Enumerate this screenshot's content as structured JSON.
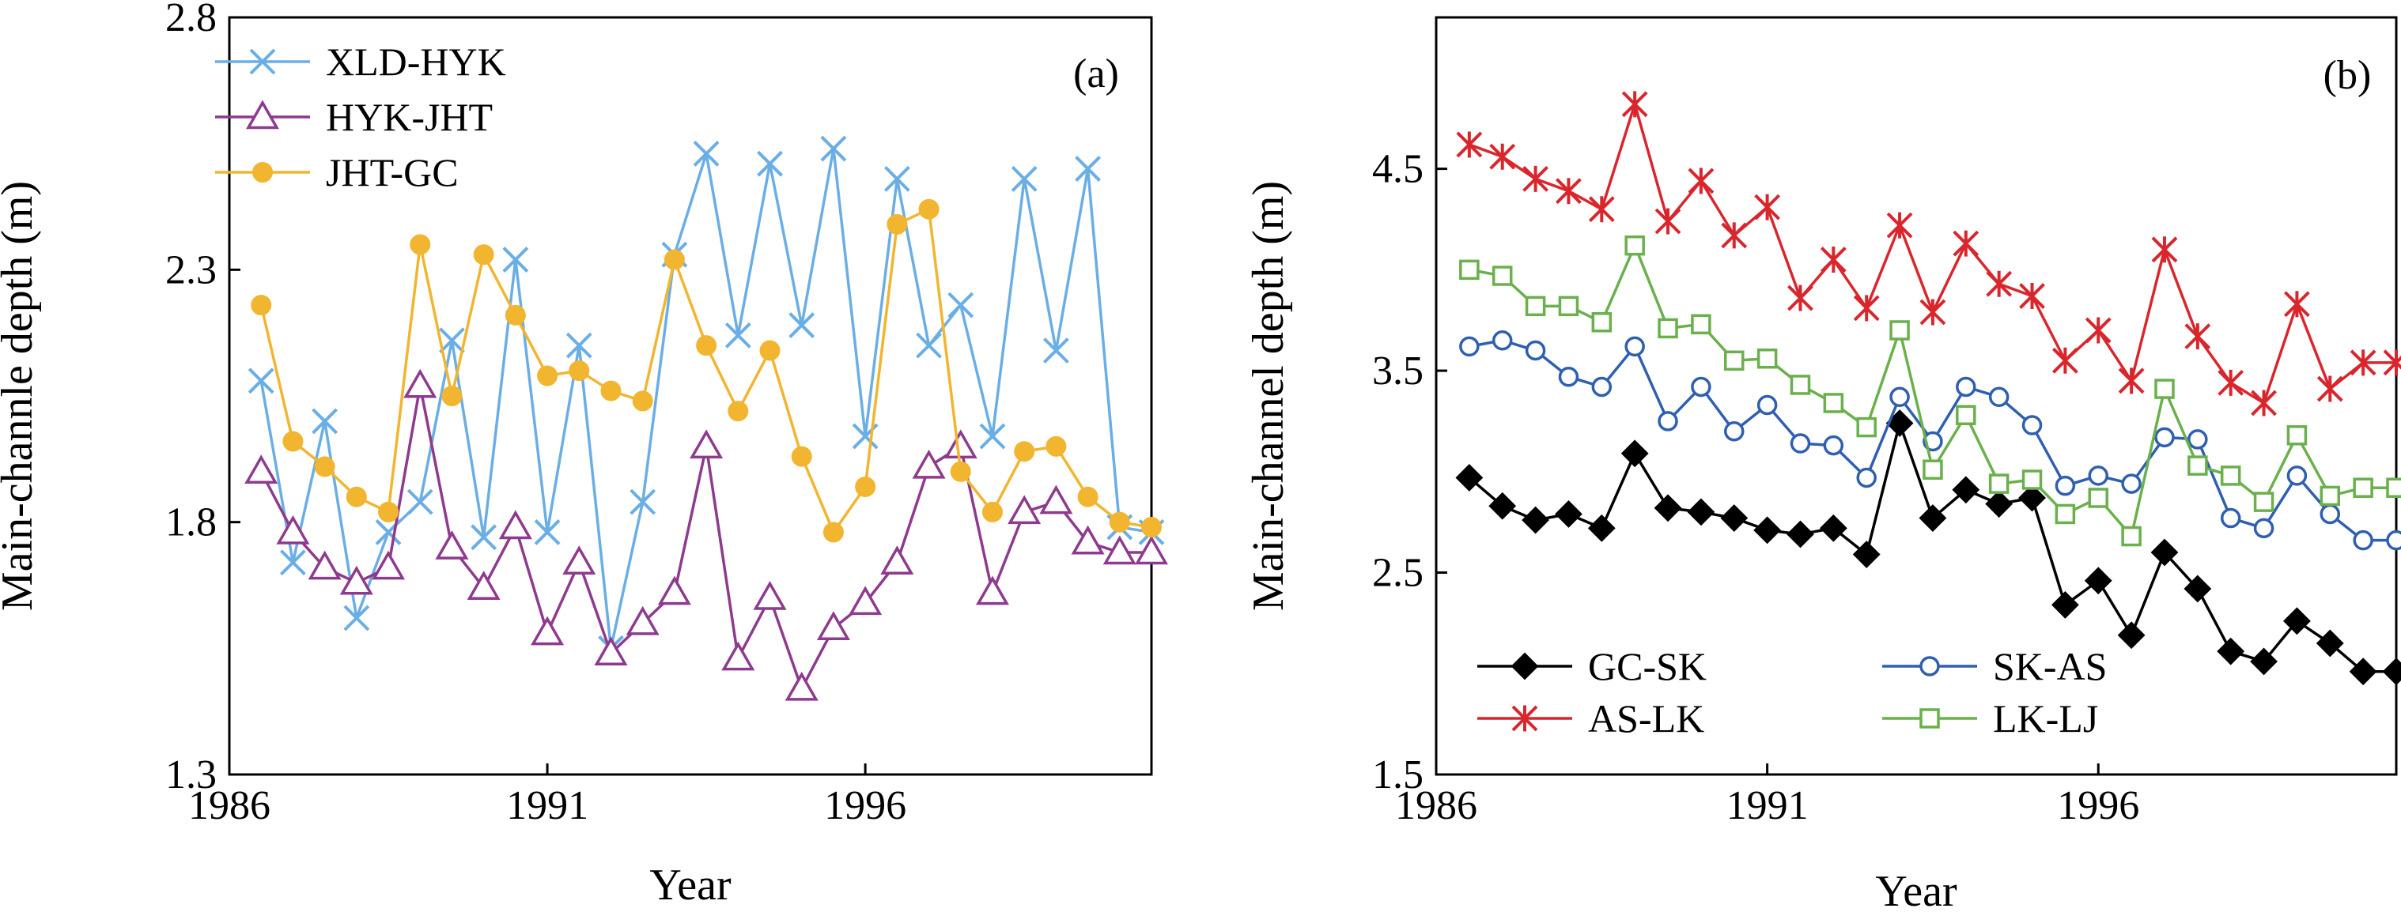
{
  "chart_data": [
    {
      "type": "line",
      "panel_label": "(a)",
      "xlabel": "Year",
      "ylabel": "Main-channle depth (m)",
      "xlim": [
        1986,
        2000.5
      ],
      "ylim": [
        1.3,
        2.8
      ],
      "x_ticks": [
        1986,
        1991,
        1996
      ],
      "y_ticks": [
        1.3,
        1.8,
        2.3,
        2.8
      ],
      "y_tick_labels": [
        "1.3",
        "1.8",
        "2.3",
        "2.8"
      ],
      "legend_position": "top-left",
      "grid": false,
      "series": [
        {
          "name": "XLD-HYK",
          "color": "#6aaee6",
          "marker": "x",
          "x": [
            1986.5,
            1987,
            1987.5,
            1988,
            1988.5,
            1989,
            1989.5,
            1990,
            1990.5,
            1991,
            1991.5,
            1992,
            1992.5,
            1993,
            1993.5,
            1994,
            1994.5,
            1995,
            1995.5,
            1996,
            1996.5,
            1997,
            1997.5,
            1998,
            1998.5,
            1999,
            1999.5,
            2000,
            2000.5
          ],
          "y": [
            2.08,
            1.72,
            2.0,
            1.61,
            1.78,
            1.84,
            2.16,
            1.77,
            2.32,
            1.78,
            2.15,
            1.55,
            1.84,
            2.33,
            2.53,
            2.17,
            2.51,
            2.19,
            2.54,
            1.97,
            2.48,
            2.15,
            2.23,
            1.97,
            2.48,
            2.14,
            2.5,
            1.79,
            1.78
          ]
        },
        {
          "name": "HYK-JHT",
          "color": "#8e3a8e",
          "marker": "triangle",
          "x": [
            1986.5,
            1987,
            1987.5,
            1988,
            1988.5,
            1989,
            1989.5,
            1990,
            1990.5,
            1991,
            1991.5,
            1992,
            1992.5,
            1993,
            1993.5,
            1994,
            1994.5,
            1995,
            1995.5,
            1996,
            1996.5,
            1997,
            1997.5,
            1998,
            1998.5,
            1999,
            1999.5,
            2000,
            2000.5
          ],
          "y": [
            1.9,
            1.78,
            1.71,
            1.68,
            1.71,
            2.07,
            1.75,
            1.67,
            1.79,
            1.58,
            1.72,
            1.54,
            1.6,
            1.66,
            1.95,
            1.53,
            1.65,
            1.47,
            1.59,
            1.64,
            1.72,
            1.91,
            1.95,
            1.66,
            1.82,
            1.84,
            1.76,
            1.74,
            1.74
          ]
        },
        {
          "name": "JHT-GC",
          "color": "#f2b530",
          "marker": "circle",
          "x": [
            1986.5,
            1987,
            1987.5,
            1988,
            1988.5,
            1989,
            1989.5,
            1990,
            1990.5,
            1991,
            1991.5,
            1992,
            1992.5,
            1993,
            1993.5,
            1994,
            1994.5,
            1995,
            1995.5,
            1996,
            1996.5,
            1997,
            1997.5,
            1998,
            1998.5,
            1999,
            1999.5,
            2000,
            2000.5
          ],
          "y": [
            2.23,
            1.96,
            1.91,
            1.85,
            1.82,
            2.35,
            2.05,
            2.33,
            2.21,
            2.09,
            2.1,
            2.06,
            2.04,
            2.32,
            2.15,
            2.02,
            2.14,
            1.93,
            1.78,
            1.87,
            2.39,
            2.42,
            1.9,
            1.82,
            1.94,
            1.95,
            1.85,
            1.8,
            1.79
          ]
        }
      ]
    },
    {
      "type": "line",
      "panel_label": "(b)",
      "xlabel": "Year",
      "ylabel": "Main-channel depth (m)",
      "xlim": [
        1986,
        2000.5
      ],
      "ylim": [
        1.5,
        5.25
      ],
      "x_ticks": [
        1986,
        1991,
        1996
      ],
      "y_ticks": [
        1.5,
        2.5,
        3.5,
        4.5
      ],
      "y_tick_labels": [
        "1.5",
        "2.5",
        "3.5",
        "4.5"
      ],
      "legend_position": "bottom-left",
      "grid": false,
      "series": [
        {
          "name": "GC-SK",
          "color": "#000000",
          "marker": "diamond",
          "x": [
            1986.5,
            1987,
            1987.5,
            1988,
            1988.5,
            1989,
            1989.5,
            1990,
            1990.5,
            1991,
            1991.5,
            1992,
            1992.5,
            1993,
            1993.5,
            1994,
            1994.5,
            1995,
            1995.5,
            1996,
            1996.5,
            1997,
            1997.5,
            1998,
            1998.5,
            1999,
            1999.5,
            2000,
            2000.5
          ],
          "y": [
            2.97,
            2.83,
            2.76,
            2.79,
            2.72,
            3.09,
            2.82,
            2.8,
            2.77,
            2.71,
            2.69,
            2.72,
            2.59,
            3.24,
            2.77,
            2.91,
            2.84,
            2.87,
            2.34,
            2.46,
            2.19,
            2.6,
            2.42,
            2.11,
            2.06,
            2.26,
            2.15,
            2.01,
            2.01
          ]
        },
        {
          "name": "SK-AS",
          "color": "#2f5fb0",
          "marker": "circle-open",
          "x": [
            1986.5,
            1987,
            1987.5,
            1988,
            1988.5,
            1989,
            1989.5,
            1990,
            1990.5,
            1991,
            1991.5,
            1992,
            1992.5,
            1993,
            1993.5,
            1994,
            1994.5,
            1995,
            1995.5,
            1996,
            1996.5,
            1997,
            1997.5,
            1998,
            1998.5,
            1999,
            1999.5,
            2000,
            2000.5
          ],
          "y": [
            3.62,
            3.65,
            3.6,
            3.47,
            3.42,
            3.62,
            3.25,
            3.42,
            3.2,
            3.33,
            3.14,
            3.13,
            2.97,
            3.37,
            3.15,
            3.42,
            3.37,
            3.23,
            2.93,
            2.98,
            2.94,
            3.17,
            3.16,
            2.77,
            2.72,
            2.98,
            2.79,
            2.66,
            2.66
          ]
        },
        {
          "name": "AS-LK",
          "color": "#d9262c",
          "marker": "star",
          "x": [
            1986.5,
            1987,
            1987.5,
            1988,
            1988.5,
            1989,
            1989.5,
            1990,
            1990.5,
            1991,
            1991.5,
            1992,
            1992.5,
            1993,
            1993.5,
            1994,
            1994.5,
            1995,
            1995.5,
            1996,
            1996.5,
            1997,
            1997.5,
            1998,
            1998.5,
            1999,
            1999.5,
            2000,
            2000.5
          ],
          "y": [
            4.62,
            4.56,
            4.45,
            4.39,
            4.3,
            4.82,
            4.24,
            4.44,
            4.17,
            4.31,
            3.86,
            4.05,
            3.81,
            4.22,
            3.79,
            4.13,
            3.93,
            3.87,
            3.55,
            3.7,
            3.45,
            4.1,
            3.67,
            3.44,
            3.34,
            3.83,
            3.41,
            3.54,
            3.54
          ]
        },
        {
          "name": "LK-LJ",
          "color": "#6ab04c",
          "marker": "square-open",
          "x": [
            1986.5,
            1987,
            1987.5,
            1988,
            1988.5,
            1989,
            1989.5,
            1990,
            1990.5,
            1991,
            1991.5,
            1992,
            1992.5,
            1993,
            1993.5,
            1994,
            1994.5,
            1995,
            1995.5,
            1996,
            1996.5,
            1997,
            1997.5,
            1998,
            1998.5,
            1999,
            1999.5,
            2000,
            2000.5
          ],
          "y": [
            4.0,
            3.97,
            3.82,
            3.82,
            3.74,
            4.12,
            3.71,
            3.73,
            3.55,
            3.56,
            3.43,
            3.34,
            3.22,
            3.7,
            3.01,
            3.28,
            2.94,
            2.96,
            2.79,
            2.87,
            2.68,
            3.41,
            3.03,
            2.98,
            2.85,
            3.18,
            2.88,
            2.92,
            2.92
          ]
        }
      ]
    }
  ]
}
